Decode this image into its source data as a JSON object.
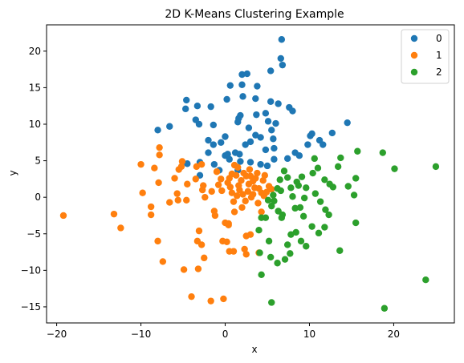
{
  "chart_data": {
    "type": "scatter",
    "title": "2D K-Means Clustering Example",
    "xlabel": "x",
    "ylabel": "y",
    "xlim": [
      -21.2,
      27.2
    ],
    "ylim": [
      -17.2,
      23.6
    ],
    "xticks": [
      -20,
      -10,
      0,
      10,
      20
    ],
    "yticks": [
      -15,
      -10,
      -5,
      0,
      5,
      10,
      15,
      20
    ],
    "grid": false,
    "legend_position": "top-right",
    "series": [
      {
        "name": "0",
        "color": "#1f77b4",
        "points": [
          [
            6.7,
            21.6
          ],
          [
            6.6,
            19.0
          ],
          [
            6.8,
            18.1
          ],
          [
            2.0,
            16.8
          ],
          [
            2.6,
            16.9
          ],
          [
            5.4,
            17.3
          ],
          [
            0.6,
            15.3
          ],
          [
            2.0,
            15.4
          ],
          [
            3.8,
            15.2
          ],
          [
            -4.6,
            13.3
          ],
          [
            -4.7,
            12.1
          ],
          [
            -3.3,
            12.5
          ],
          [
            -1.7,
            12.4
          ],
          [
            0.2,
            13.4
          ],
          [
            2.1,
            13.8
          ],
          [
            3.6,
            13.5
          ],
          [
            5.4,
            13.1
          ],
          [
            6.3,
            12.8
          ],
          [
            -6.6,
            9.7
          ],
          [
            -8.0,
            9.2
          ],
          [
            -3.5,
            10.6
          ],
          [
            -3.1,
            10.0
          ],
          [
            -1.4,
            9.9
          ],
          [
            1.5,
            10.3
          ],
          [
            1.6,
            10.8
          ],
          [
            1.8,
            11.2
          ],
          [
            3.7,
            11.3
          ],
          [
            4.8,
            11.5
          ],
          [
            7.6,
            12.3
          ],
          [
            8.0,
            11.8
          ],
          [
            5.1,
            10.4
          ],
          [
            6.0,
            10.1
          ],
          [
            2.8,
            9.5
          ],
          [
            3.6,
            8.5
          ],
          [
            4.2,
            8.2
          ],
          [
            5.5,
            9.2
          ],
          [
            5.7,
            8.0
          ],
          [
            10.1,
            8.4
          ],
          [
            10.3,
            8.7
          ],
          [
            12.7,
            8.8
          ],
          [
            14.5,
            10.2
          ],
          [
            11.2,
            7.8
          ],
          [
            11.6,
            7.2
          ],
          [
            9.8,
            7.2
          ],
          [
            -2.0,
            7.8
          ],
          [
            -1.4,
            7.2
          ],
          [
            -0.5,
            7.5
          ],
          [
            0.0,
            8.3
          ],
          [
            2.4,
            7.2
          ],
          [
            3.0,
            7.6
          ],
          [
            4.8,
            6.5
          ],
          [
            5.8,
            6.7
          ],
          [
            -2.0,
            6.1
          ],
          [
            0.0,
            5.7
          ],
          [
            0.3,
            5.9
          ],
          [
            1.2,
            6.1
          ],
          [
            1.7,
            5.9
          ],
          [
            -4.5,
            4.6
          ],
          [
            -3.0,
            4.8
          ],
          [
            -1.3,
            4.5
          ],
          [
            0.5,
            5.2
          ],
          [
            1.8,
            4.9
          ],
          [
            3.0,
            4.8
          ],
          [
            4.2,
            4.5
          ],
          [
            5.0,
            4.3
          ],
          [
            5.8,
            5.2
          ],
          [
            8.3,
            6.1
          ],
          [
            8.8,
            5.7
          ],
          [
            -0.7,
            3.7
          ],
          [
            1.5,
            3.7
          ],
          [
            7.4,
            5.3
          ],
          [
            -3.0,
            3.0
          ]
        ]
      },
      {
        "name": "1",
        "color": "#ff7f0e",
        "points": [
          [
            -19.2,
            -2.5
          ],
          [
            -13.2,
            -2.3
          ],
          [
            -12.4,
            -4.2
          ],
          [
            -10.0,
            4.5
          ],
          [
            -9.8,
            0.6
          ],
          [
            -8.4,
            4.0
          ],
          [
            -8.8,
            -1.3
          ],
          [
            -8.8,
            -2.4
          ],
          [
            -7.8,
            6.8
          ],
          [
            -7.8,
            5.8
          ],
          [
            -7.9,
            2.0
          ],
          [
            -8.0,
            -6.0
          ],
          [
            -7.4,
            -8.8
          ],
          [
            -6.6,
            -0.7
          ],
          [
            -6.0,
            2.6
          ],
          [
            -5.5,
            3.8
          ],
          [
            -5.2,
            4.2
          ],
          [
            -5.1,
            4.9
          ],
          [
            -5.7,
            0.5
          ],
          [
            -5.6,
            -0.4
          ],
          [
            -4.6,
            -0.4
          ],
          [
            -4.5,
            1.8
          ],
          [
            -4.9,
            -9.9
          ],
          [
            -4.0,
            -13.6
          ],
          [
            -3.5,
            2.5
          ],
          [
            -3.4,
            4.2
          ],
          [
            -2.8,
            4.5
          ],
          [
            -2.6,
            1.6
          ],
          [
            -2.7,
            1.0
          ],
          [
            -2.4,
            0.0
          ],
          [
            -3.3,
            -6.0
          ],
          [
            -3.1,
            -4.6
          ],
          [
            -2.8,
            -6.5
          ],
          [
            -3.2,
            -9.8
          ],
          [
            -2.5,
            -8.3
          ],
          [
            -1.7,
            -14.2
          ],
          [
            -1.6,
            0.8
          ],
          [
            -1.3,
            -1.9
          ],
          [
            -1.2,
            -2.5
          ],
          [
            -1.0,
            3.5
          ],
          [
            -0.5,
            2.5
          ],
          [
            -0.3,
            -6.0
          ],
          [
            0.2,
            -6.1
          ],
          [
            -0.2,
            -13.9
          ],
          [
            0.0,
            -3.5
          ],
          [
            0.4,
            -3.8
          ],
          [
            0.4,
            -3.6
          ],
          [
            0.5,
            -7.4
          ],
          [
            1.0,
            -7.4
          ],
          [
            1.1,
            -2.0
          ],
          [
            1.0,
            -0.6
          ],
          [
            0.8,
            0.6
          ],
          [
            0.6,
            1.4
          ],
          [
            0.5,
            2.6
          ],
          [
            0.8,
            3.2
          ],
          [
            1.1,
            4.4
          ],
          [
            1.5,
            4.1
          ],
          [
            1.4,
            0.2
          ],
          [
            1.6,
            1.6
          ],
          [
            1.9,
            2.3
          ],
          [
            2.2,
            3.3
          ],
          [
            2.5,
            2.9
          ],
          [
            2.8,
            1.8
          ],
          [
            2.4,
            -0.5
          ],
          [
            2.0,
            -1.4
          ],
          [
            2.5,
            -5.3
          ],
          [
            3.0,
            -5.1
          ],
          [
            2.3,
            -7.1
          ],
          [
            2.5,
            -7.8
          ],
          [
            3.3,
            0.4
          ],
          [
            3.5,
            1.3
          ],
          [
            3.3,
            2.2
          ],
          [
            3.0,
            2.9
          ],
          [
            3.8,
            3.3
          ],
          [
            4.0,
            1.2
          ],
          [
            4.3,
            0.6
          ],
          [
            4.6,
            0.2
          ],
          [
            3.9,
            -0.8
          ],
          [
            4.3,
            -2.0
          ],
          [
            4.0,
            -7.6
          ],
          [
            4.5,
            2.3
          ],
          [
            4.7,
            3.0
          ],
          [
            5.2,
            1.5
          ],
          [
            5.5,
            1.1
          ],
          [
            2.7,
            0.8
          ],
          [
            3.1,
            0.0
          ],
          [
            1.7,
            1.0
          ],
          [
            2.1,
            0.4
          ],
          [
            -0.4,
            0.9
          ],
          [
            -0.8,
            1.7
          ],
          [
            0.3,
            2.0
          ],
          [
            1.3,
            3.0
          ],
          [
            3.6,
            2.6
          ],
          [
            2.9,
            3.8
          ],
          [
            4.9,
            0.7
          ]
        ]
      },
      {
        "name": "2",
        "color": "#2ca02c",
        "points": [
          [
            25.0,
            4.2
          ],
          [
            20.1,
            3.9
          ],
          [
            18.7,
            6.1
          ],
          [
            15.7,
            6.3
          ],
          [
            15.5,
            2.6
          ],
          [
            15.3,
            0.3
          ],
          [
            14.6,
            1.5
          ],
          [
            15.5,
            -3.5
          ],
          [
            13.7,
            5.4
          ],
          [
            13.4,
            4.2
          ],
          [
            12.8,
            1.4
          ],
          [
            12.4,
            1.8
          ],
          [
            12.3,
            -2.4
          ],
          [
            11.9,
            -1.7
          ],
          [
            11.8,
            2.4
          ],
          [
            11.3,
            -0.6
          ],
          [
            11.0,
            4.0
          ],
          [
            10.6,
            5.3
          ],
          [
            10.4,
            3.3
          ],
          [
            9.6,
            1.3
          ],
          [
            9.4,
            -0.1
          ],
          [
            9.1,
            2.8
          ],
          [
            9.3,
            -2.6
          ],
          [
            8.9,
            -1.4
          ],
          [
            8.3,
            -1.5
          ],
          [
            8.0,
            0.1
          ],
          [
            8.7,
            1.6
          ],
          [
            7.8,
            1.3
          ],
          [
            7.4,
            2.7
          ],
          [
            7.0,
            3.6
          ],
          [
            6.5,
            2.4
          ],
          [
            6.2,
            1.2
          ],
          [
            5.7,
            0.3
          ],
          [
            5.8,
            -0.5
          ],
          [
            5.5,
            -1.2
          ],
          [
            5.1,
            -0.4
          ],
          [
            6.3,
            -1.9
          ],
          [
            6.8,
            -2.4
          ],
          [
            6.7,
            -2.8
          ],
          [
            4.8,
            -2.8
          ],
          [
            4.3,
            -2.8
          ],
          [
            4.0,
            -4.5
          ],
          [
            5.2,
            -6.0
          ],
          [
            5.4,
            -8.2
          ],
          [
            4.1,
            -7.6
          ],
          [
            4.3,
            -10.6
          ],
          [
            5.5,
            -14.4
          ],
          [
            7.8,
            -5.1
          ],
          [
            7.4,
            -6.5
          ],
          [
            8.4,
            -4.8
          ],
          [
            9.0,
            -6.0
          ],
          [
            9.6,
            -6.7
          ],
          [
            10.3,
            -4.0
          ],
          [
            11.1,
            -4.9
          ],
          [
            11.8,
            -4.1
          ],
          [
            13.6,
            -7.3
          ],
          [
            7.1,
            -8.5
          ],
          [
            7.7,
            -7.7
          ],
          [
            6.2,
            -9.0
          ],
          [
            18.9,
            -15.2
          ],
          [
            23.8,
            -11.3
          ],
          [
            10.7,
            0.5
          ],
          [
            8.5,
            2.1
          ],
          [
            6.6,
            0.9
          ]
        ]
      }
    ]
  }
}
